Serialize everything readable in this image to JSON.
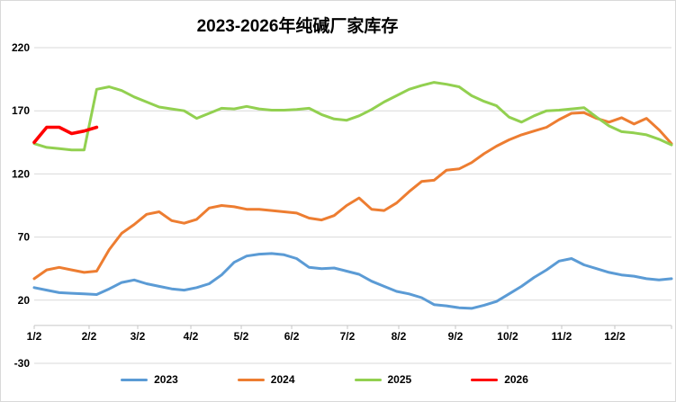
{
  "title": "2023-2026年纯碱厂家库存",
  "chart_data": {
    "type": "line",
    "title": "2023-2026年纯碱厂家库存",
    "grid": true,
    "legend_position": "bottom",
    "x_axis": {
      "labels": [
        "1/2",
        "2/2",
        "3/2",
        "4/2",
        "5/2",
        "6/2",
        "7/2",
        "8/2",
        "9/2",
        "10/2",
        "11/2",
        "12/2"
      ],
      "fractions": [
        0,
        0.0861,
        0.1624,
        0.2458,
        0.3249,
        0.404,
        0.4915,
        0.572,
        0.661,
        0.7429,
        0.8277,
        0.911
      ]
    },
    "y_axis": {
      "ticks": [
        220,
        170,
        120,
        70,
        20,
        -30
      ],
      "min": -30,
      "max": 220
    },
    "x_axis_cross": 0,
    "weeks_per_year": 52,
    "series": [
      {
        "name": "2023",
        "color": "#5B9BD5",
        "values": [
          30,
          28,
          26,
          25.5,
          25,
          24.5,
          29,
          34,
          36,
          33,
          31,
          29,
          28,
          30,
          33,
          40,
          50,
          55,
          56.5,
          57,
          56,
          53,
          46,
          45,
          45.5,
          43,
          40.5,
          35,
          31,
          27,
          25,
          22,
          16.5,
          15.5,
          14,
          13.5,
          16,
          19,
          25,
          31,
          38,
          44,
          51,
          53,
          48,
          45,
          42,
          40,
          39,
          37,
          36,
          37
        ]
      },
      {
        "name": "2024",
        "color": "#ED7D31",
        "values": [
          37,
          44,
          46,
          44,
          42,
          43,
          60,
          73,
          80,
          88,
          90,
          83,
          81,
          84,
          93,
          95,
          94,
          92,
          92,
          91,
          90,
          89,
          85,
          83.5,
          87,
          95,
          101,
          92,
          91,
          97,
          106,
          114,
          115,
          123,
          124,
          129,
          136,
          142,
          147,
          151,
          154,
          157,
          163,
          168,
          168.5,
          164,
          161,
          164.5,
          159.5,
          164,
          155,
          144
        ]
      },
      {
        "name": "2025",
        "color": "#92D050",
        "values": [
          144,
          141,
          140,
          139,
          139,
          187,
          189,
          186,
          181,
          177,
          173,
          171.5,
          170,
          164,
          168,
          172,
          171.5,
          173.5,
          171.5,
          170.5,
          170.5,
          171,
          172,
          167,
          163.5,
          162.5,
          166,
          171,
          177,
          182,
          187,
          190,
          192.5,
          191,
          189,
          182,
          177.5,
          174,
          165,
          161,
          166,
          170,
          170.5,
          171.5,
          172.5,
          165,
          158,
          153.5,
          152.5,
          151,
          147.5,
          143
        ]
      },
      {
        "name": "2026",
        "color": "#FF0000",
        "values": [
          145,
          157,
          157,
          152,
          154,
          157
        ]
      }
    ],
    "colors": {
      "gridline": "#D9D9D9",
      "axis": "#C6C6C6",
      "tick_text": "#000000",
      "background": "#FFFFFF",
      "border": "#D9D9D9"
    }
  }
}
